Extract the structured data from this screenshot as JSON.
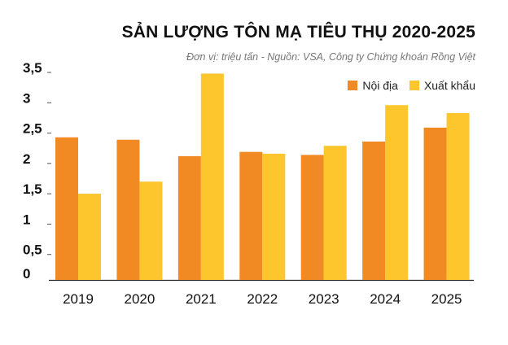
{
  "chart_data": {
    "type": "bar",
    "title": "SẢN LƯỢNG TÔN MẠ TIÊU THỤ 2020-2025",
    "subtitle": "Đơn vị: triệu tấn   -   Nguồn: VSA, Công ty Chứng khoán Rồng Việt",
    "categories": [
      "2019",
      "2020",
      "2021",
      "2022",
      "2023",
      "2024",
      "2025"
    ],
    "series": [
      {
        "name": "Nội địa",
        "color": "#f28a24",
        "values": [
          2.35,
          2.31,
          2.04,
          2.11,
          2.06,
          2.28,
          2.51
        ]
      },
      {
        "name": "Xuất khẩu",
        "color": "#fdc62c",
        "values": [
          1.42,
          1.62,
          3.4,
          2.08,
          2.21,
          2.88,
          2.75
        ]
      }
    ],
    "yticks": [
      "0",
      "0,5",
      "1",
      "1,5",
      "2",
      "2,5",
      "3",
      "3,5"
    ],
    "ylim": [
      0,
      3.5
    ],
    "legend_position": "top-right",
    "grid": false
  }
}
